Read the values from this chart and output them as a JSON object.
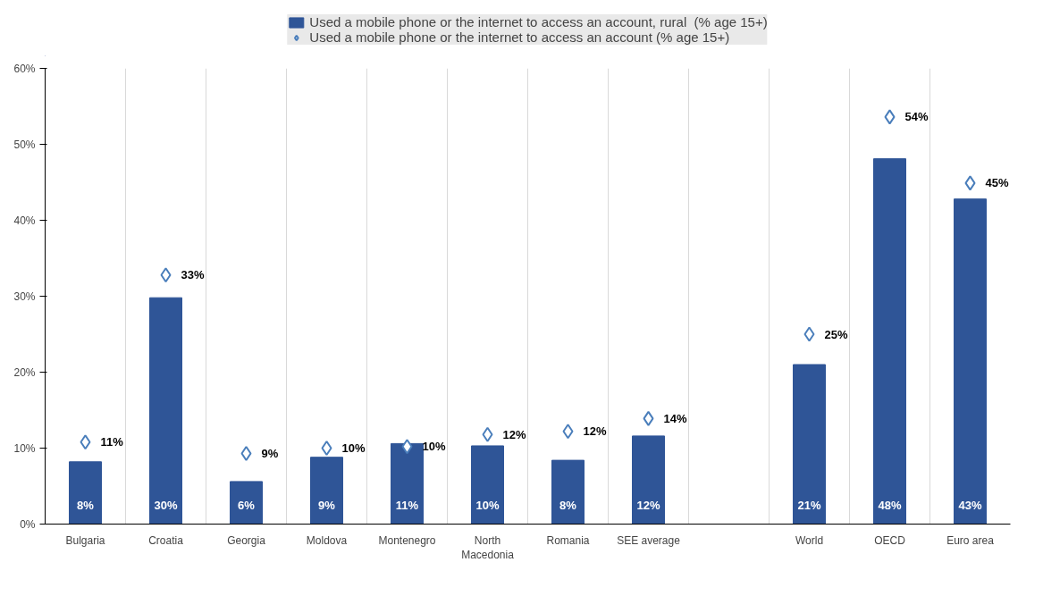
{
  "chart_data": {
    "type": "bar",
    "categories": [
      "Bulgaria",
      "Croatia",
      "Georgia",
      "Moldova",
      "Montenegro",
      "North Macedonia",
      "Romania",
      "SEE average",
      null,
      "World",
      "OECD",
      "Euro area"
    ],
    "series": [
      {
        "name": "Used a mobile phone or the internet to access an account, rural  (% age 15+)",
        "color": "#2f5597",
        "values": [
          8.2,
          29.8,
          5.6,
          8.8,
          10.6,
          10.3,
          8.4,
          11.6,
          null,
          21.0,
          48.1,
          42.8
        ],
        "value_labels": [
          "8%",
          "30%",
          "6%",
          "9%",
          "11%",
          "10%",
          "8%",
          "12%",
          null,
          "21%",
          "48%",
          "43%"
        ]
      },
      {
        "name": "Used a mobile phone or the internet to access an account (% age 15+)",
        "type": "scatter",
        "marker": "diamond",
        "color": "#4a7ebb",
        "values": [
          10.8,
          32.8,
          9.3,
          10.0,
          10.2,
          11.8,
          12.2,
          13.9,
          null,
          25.0,
          53.6,
          44.9
        ],
        "value_labels": [
          "11%",
          "33%",
          "9%",
          "10%",
          "10%",
          "12%",
          "12%",
          "14%",
          null,
          "25%",
          "54%",
          "45%"
        ]
      }
    ],
    "ylim": [
      0,
      60
    ],
    "yticks": [
      {
        "value": 0,
        "label": "0%"
      },
      {
        "value": 10,
        "label": "10%"
      },
      {
        "value": 20,
        "label": "20%"
      },
      {
        "value": 30,
        "label": "30%"
      },
      {
        "value": 40,
        "label": "40%"
      },
      {
        "value": 50,
        "label": "50%"
      },
      {
        "value": 60,
        "label": "60%"
      }
    ],
    "grid": "x",
    "legend": "top"
  }
}
